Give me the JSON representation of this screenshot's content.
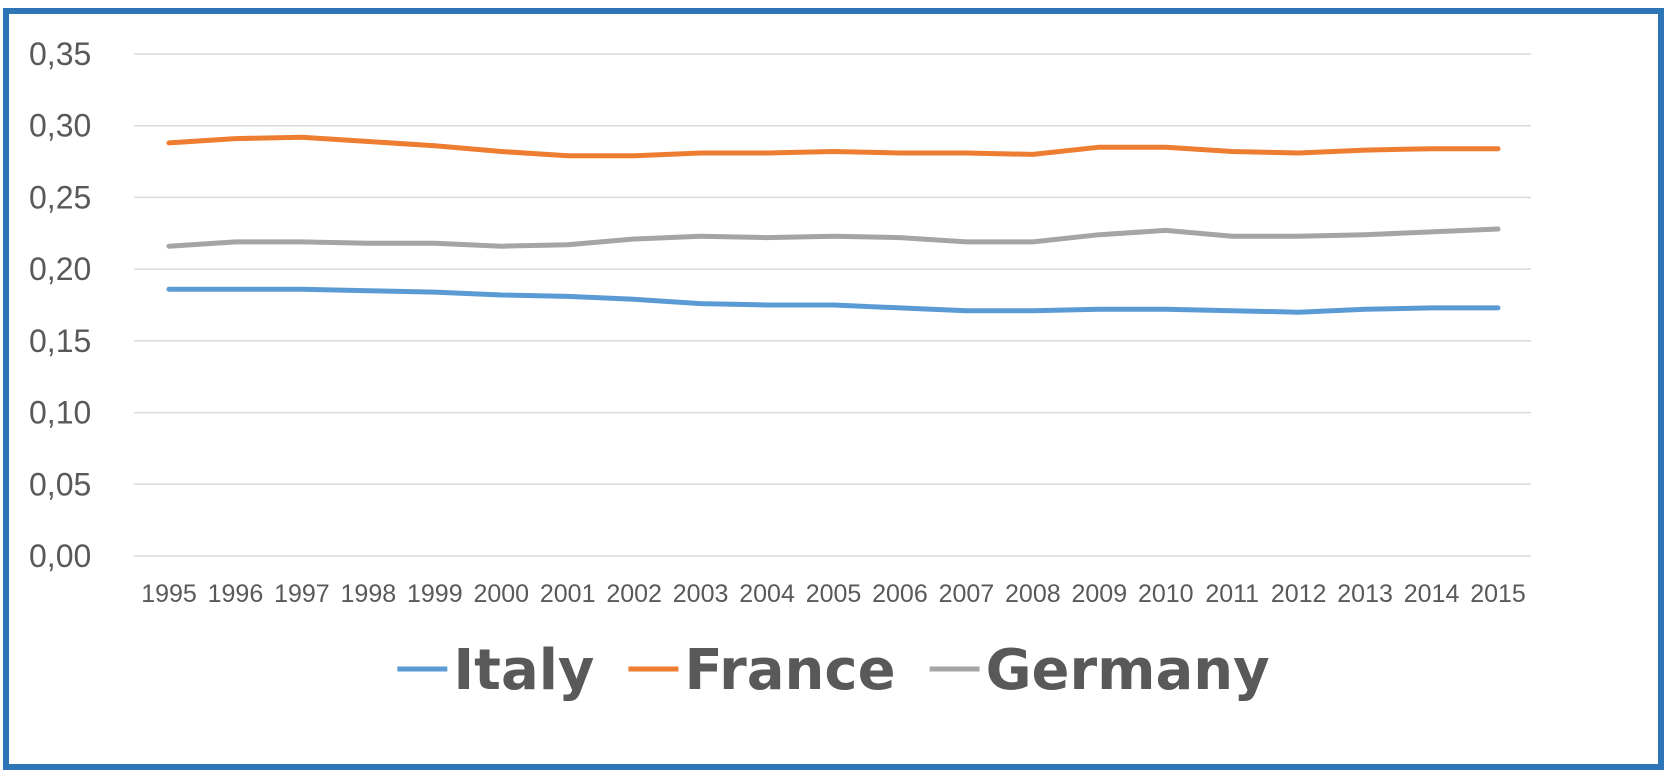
{
  "chart_data": {
    "type": "line",
    "title": "",
    "xlabel": "",
    "ylabel": "",
    "ylim": [
      0,
      0.35
    ],
    "yticks": [
      "0,00",
      "0,05",
      "0,10",
      "0,15",
      "0,20",
      "0,25",
      "0,30",
      "0,35"
    ],
    "grid": true,
    "legend": "bottom",
    "categories": [
      "1995",
      "1996",
      "1997",
      "1998",
      "1999",
      "2000",
      "2001",
      "2002",
      "2003",
      "2004",
      "2005",
      "2006",
      "2007",
      "2008",
      "2009",
      "2010",
      "2011",
      "2012",
      "2013",
      "2014",
      "2015"
    ],
    "series": [
      {
        "name": "Italy",
        "color": "#5b9bd5",
        "values": [
          0.186,
          0.186,
          0.186,
          0.185,
          0.184,
          0.182,
          0.181,
          0.179,
          0.176,
          0.175,
          0.175,
          0.173,
          0.171,
          0.171,
          0.172,
          0.172,
          0.171,
          0.17,
          0.172,
          0.173,
          0.173
        ]
      },
      {
        "name": "France",
        "color": "#ed7d31",
        "values": [
          0.288,
          0.291,
          0.292,
          0.289,
          0.286,
          0.282,
          0.279,
          0.279,
          0.281,
          0.281,
          0.282,
          0.281,
          0.281,
          0.28,
          0.285,
          0.285,
          0.282,
          0.281,
          0.283,
          0.284,
          0.284
        ]
      },
      {
        "name": "Germany",
        "color": "#a5a5a5",
        "values": [
          0.216,
          0.219,
          0.219,
          0.218,
          0.218,
          0.216,
          0.217,
          0.221,
          0.223,
          0.222,
          0.223,
          0.222,
          0.219,
          0.219,
          0.224,
          0.227,
          0.223,
          0.223,
          0.224,
          0.226,
          0.228
        ]
      }
    ]
  }
}
